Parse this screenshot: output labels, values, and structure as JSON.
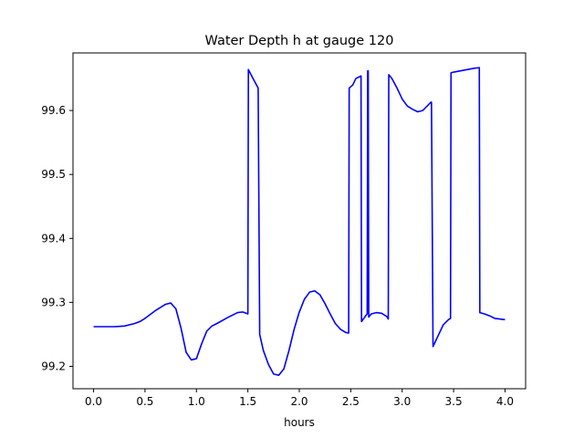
{
  "chart_data": {
    "type": "line",
    "title": "Water Depth h at gauge 120",
    "xlabel": "hours",
    "ylabel": "",
    "xlim": [
      -0.2,
      4.2
    ],
    "ylim": [
      99.165,
      99.69
    ],
    "x_ticks": [
      0.0,
      0.5,
      1.0,
      1.5,
      2.0,
      2.5,
      3.0,
      3.5,
      4.0
    ],
    "x_tick_labels": [
      "0.0",
      "0.5",
      "1.0",
      "1.5",
      "2.0",
      "2.5",
      "3.0",
      "3.5",
      "4.0"
    ],
    "y_ticks": [
      99.2,
      99.3,
      99.4,
      99.5,
      99.6
    ],
    "y_tick_labels": [
      "99.2",
      "99.3",
      "99.4",
      "99.5",
      "99.6"
    ],
    "grid": false,
    "series": [
      {
        "color": "#0000ff",
        "x": [
          0.0,
          0.1,
          0.2,
          0.3,
          0.4,
          0.45,
          0.5,
          0.6,
          0.7,
          0.75,
          0.8,
          0.85,
          0.9,
          0.95,
          1.0,
          1.05,
          1.1,
          1.15,
          1.2,
          1.3,
          1.4,
          1.45,
          1.5,
          1.505,
          1.55,
          1.6,
          1.615,
          1.65,
          1.7,
          1.75,
          1.8,
          1.85,
          1.9,
          1.95,
          2.0,
          2.05,
          2.1,
          2.15,
          2.2,
          2.25,
          2.3,
          2.35,
          2.4,
          2.45,
          2.48,
          2.485,
          2.52,
          2.55,
          2.6,
          2.605,
          2.65,
          2.66,
          2.665,
          2.67,
          2.675,
          2.7,
          2.75,
          2.8,
          2.85,
          2.865,
          2.87,
          2.9,
          2.95,
          3.0,
          3.05,
          3.1,
          3.15,
          3.2,
          3.25,
          3.28,
          3.285,
          3.3,
          3.35,
          3.4,
          3.45,
          3.47,
          3.475,
          3.5,
          3.6,
          3.7,
          3.75,
          3.755,
          3.8,
          3.85,
          3.9,
          4.0
        ],
        "values": [
          99.262,
          99.262,
          99.262,
          99.263,
          99.267,
          99.27,
          99.275,
          99.287,
          99.297,
          99.299,
          99.29,
          99.26,
          99.222,
          99.21,
          99.212,
          99.235,
          99.255,
          99.263,
          99.267,
          99.276,
          99.284,
          99.285,
          99.282,
          99.664,
          99.65,
          99.635,
          99.25,
          99.225,
          99.203,
          99.188,
          99.186,
          99.196,
          99.225,
          99.258,
          99.285,
          99.305,
          99.316,
          99.318,
          99.312,
          99.298,
          99.282,
          99.267,
          99.258,
          99.253,
          99.252,
          99.635,
          99.64,
          99.65,
          99.654,
          99.27,
          99.28,
          99.282,
          99.662,
          99.662,
          99.277,
          99.282,
          99.284,
          99.283,
          99.278,
          99.274,
          99.656,
          99.65,
          99.635,
          99.618,
          99.607,
          99.602,
          99.598,
          99.6,
          99.608,
          99.613,
          99.613,
          99.231,
          99.248,
          99.265,
          99.273,
          99.275,
          99.659,
          99.66,
          99.663,
          99.666,
          99.667,
          99.284,
          99.282,
          99.279,
          99.275,
          99.273
        ]
      }
    ]
  }
}
